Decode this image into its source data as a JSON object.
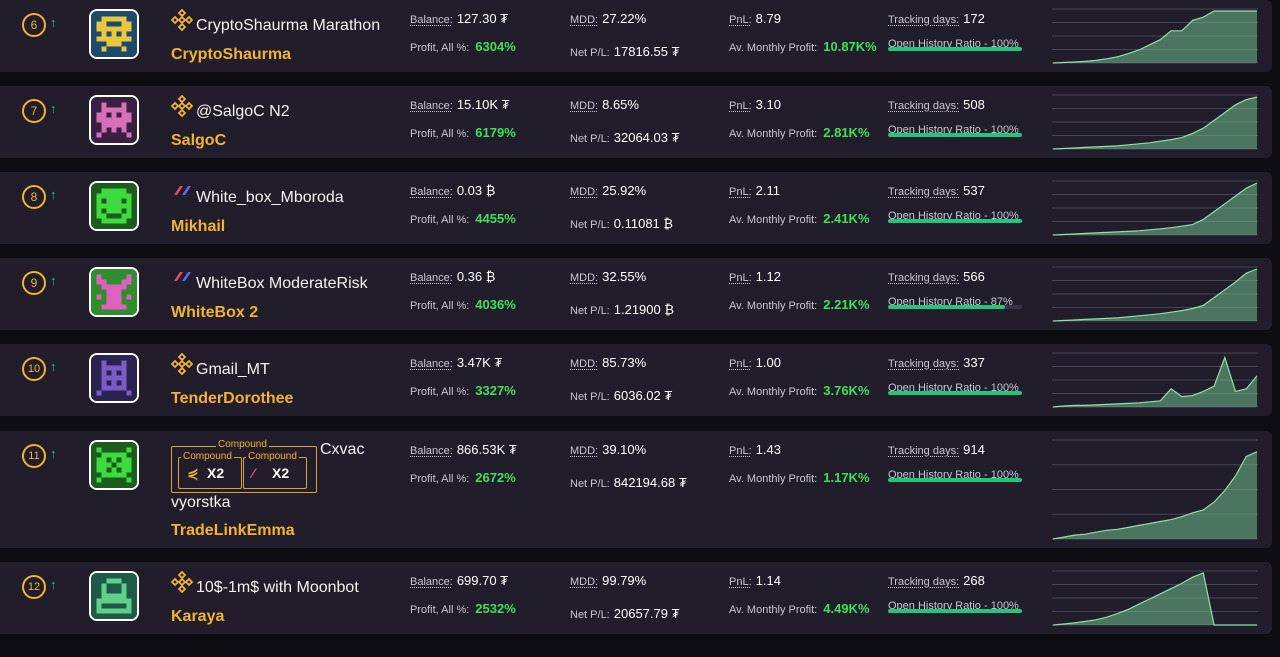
{
  "labels": {
    "balance": "Balance:",
    "profit_all": "Profit, All %:",
    "mdd": "MDD:",
    "net_pl": "Net P/L:",
    "pnl": "PnL:",
    "av_monthly": "Av. Monthly Profit:",
    "tracking": "Tracking days:",
    "ohr_prefix": "Open History Ratio - "
  },
  "colors": {
    "accent": "#f2b233",
    "green": "#3ee05a",
    "bar": "#1fc77a",
    "row_bg": "#221d2b"
  },
  "rows": [
    {
      "rank": "6",
      "trend_icon": "arrow-up-icon",
      "avatar_color": "#e9c63d",
      "avatar_bg": "#1b4a6b",
      "exchange_icon": "binance-icon",
      "bot_name": "CryptoShaurma Marathon",
      "trader": "CryptoShaurma",
      "balance": "127.30 ₮",
      "profit": "6304%",
      "mdd": "27.22%",
      "net_pl": "17816.55 ₮",
      "pnl": "8.79",
      "av_monthly": "10.87K%",
      "tracking": "172",
      "ohr": "100%",
      "ohr_value": 1.0,
      "spark": [
        0,
        0.01,
        0.02,
        0.03,
        0.05,
        0.08,
        0.12,
        0.18,
        0.25,
        0.35,
        0.45,
        0.62,
        0.62,
        0.82,
        0.88,
        1,
        1,
        1,
        1,
        1
      ]
    },
    {
      "rank": "7",
      "trend_icon": "arrow-up-icon",
      "avatar_color": "#d66fb8",
      "avatar_bg": "#3a2040",
      "exchange_icon": "binance-icon",
      "bot_name": "@SalgoC N2",
      "trader": "SalgoC",
      "balance": "15.10K ₮",
      "profit": "6179%",
      "mdd": "8.65%",
      "net_pl": "32064.03 ₮",
      "pnl": "3.10",
      "av_monthly": "2.81K%",
      "tracking": "508",
      "ohr": "100%",
      "ohr_value": 1.0,
      "spark": [
        0,
        0.01,
        0.02,
        0.03,
        0.04,
        0.05,
        0.06,
        0.08,
        0.1,
        0.12,
        0.15,
        0.18,
        0.22,
        0.3,
        0.4,
        0.55,
        0.7,
        0.85,
        0.95,
        1
      ]
    },
    {
      "rank": "8",
      "trend_icon": "arrow-up-icon",
      "avatar_color": "#3ddb3d",
      "avatar_bg": "#1c5c1c",
      "exchange_icon": "bybit-icon",
      "bot_name": "White_box_Mboroda",
      "trader": "Mikhail",
      "balance": "0.03 ₿",
      "profit": "4455%",
      "mdd": "25.92%",
      "net_pl": "0.11081 ₿",
      "pnl": "2.11",
      "av_monthly": "2.41K%",
      "tracking": "537",
      "ohr": "100%",
      "ohr_value": 1.0,
      "spark": [
        0,
        0.01,
        0.02,
        0.03,
        0.04,
        0.05,
        0.06,
        0.07,
        0.08,
        0.1,
        0.12,
        0.14,
        0.17,
        0.2,
        0.3,
        0.45,
        0.6,
        0.75,
        0.9,
        1
      ]
    },
    {
      "rank": "9",
      "trend_icon": "arrow-up-icon",
      "avatar_color": "#e05fbf",
      "avatar_bg": "#2f8c2f",
      "exchange_icon": "bybit-icon",
      "bot_name": "WhiteBox ModerateRisk",
      "trader": "WhiteBox 2",
      "balance": "0.36 ₿",
      "profit": "4036%",
      "mdd": "32.55%",
      "net_pl": "1.21900 ₿",
      "pnl": "1.12",
      "av_monthly": "2.21K%",
      "tracking": "566",
      "ohr": "87%",
      "ohr_value": 0.87,
      "spark": [
        0,
        0.01,
        0.02,
        0.03,
        0.04,
        0.05,
        0.06,
        0.08,
        0.1,
        0.12,
        0.14,
        0.17,
        0.2,
        0.24,
        0.3,
        0.45,
        0.6,
        0.75,
        0.92,
        1
      ]
    },
    {
      "rank": "10",
      "trend_icon": "arrow-up-icon",
      "avatar_color": "#7a5cc8",
      "avatar_bg": "#2a2350",
      "exchange_icon": "binance-icon",
      "bot_name": "Gmail_MT",
      "trader": "TenderDorothee",
      "balance": "3.47K ₮",
      "profit": "3327%",
      "mdd": "85.73%",
      "net_pl": "6036.02 ₮",
      "pnl": "1.00",
      "av_monthly": "3.76K%",
      "tracking": "337",
      "ohr": "100%",
      "ohr_value": 1.0,
      "spark": [
        0,
        0.02,
        0.03,
        0.03,
        0.04,
        0.05,
        0.06,
        0.07,
        0.08,
        0.1,
        0.12,
        0.35,
        0.2,
        0.22,
        0.3,
        0.4,
        0.95,
        0.3,
        0.35,
        0.6
      ]
    },
    {
      "rank": "11",
      "trend_icon": "arrow-up-icon",
      "avatar_color": "#3ddb3d",
      "avatar_bg": "#1c5c1c",
      "exchange_icon": "compound-badge",
      "bot_name": "Cxvac",
      "bot_name_2": "vyorstka",
      "trader": "TradeLinkEmma",
      "badge_title": "Compound",
      "badge_sub_1": "Compound",
      "badge_val_1": "X2",
      "badge_sub_2": "Compound",
      "badge_val_2": "X2",
      "balance": "866.53K ₮",
      "profit": "2672%",
      "mdd": "39.10%",
      "net_pl": "842194.68 ₮",
      "pnl": "1.43",
      "av_monthly": "1.17K%",
      "tracking": "914",
      "ohr": "100%",
      "ohr_value": 1.0,
      "spark": [
        0,
        0.02,
        0.04,
        0.05,
        0.07,
        0.09,
        0.1,
        0.12,
        0.14,
        0.16,
        0.18,
        0.2,
        0.23,
        0.27,
        0.3,
        0.38,
        0.5,
        0.65,
        0.85,
        0.9
      ]
    },
    {
      "rank": "12",
      "trend_icon": "arrow-up-icon",
      "avatar_color": "#5fd08a",
      "avatar_bg": "#1f5a48",
      "exchange_icon": "binance-icon",
      "bot_name": "10$-1m$ with Moonbot",
      "trader": "Karaya",
      "balance": "699.70 ₮",
      "profit": "2532%",
      "mdd": "99.79%",
      "net_pl": "20657.79 ₮",
      "pnl": "1.14",
      "av_monthly": "4.49K%",
      "tracking": "268",
      "ohr": "100%",
      "ohr_value": 1.0,
      "spark": [
        0,
        0.02,
        0.04,
        0.07,
        0.1,
        0.15,
        0.22,
        0.3,
        0.4,
        0.5,
        0.6,
        0.7,
        0.8,
        0.92,
        1,
        0,
        0,
        0,
        0,
        0
      ]
    }
  ]
}
